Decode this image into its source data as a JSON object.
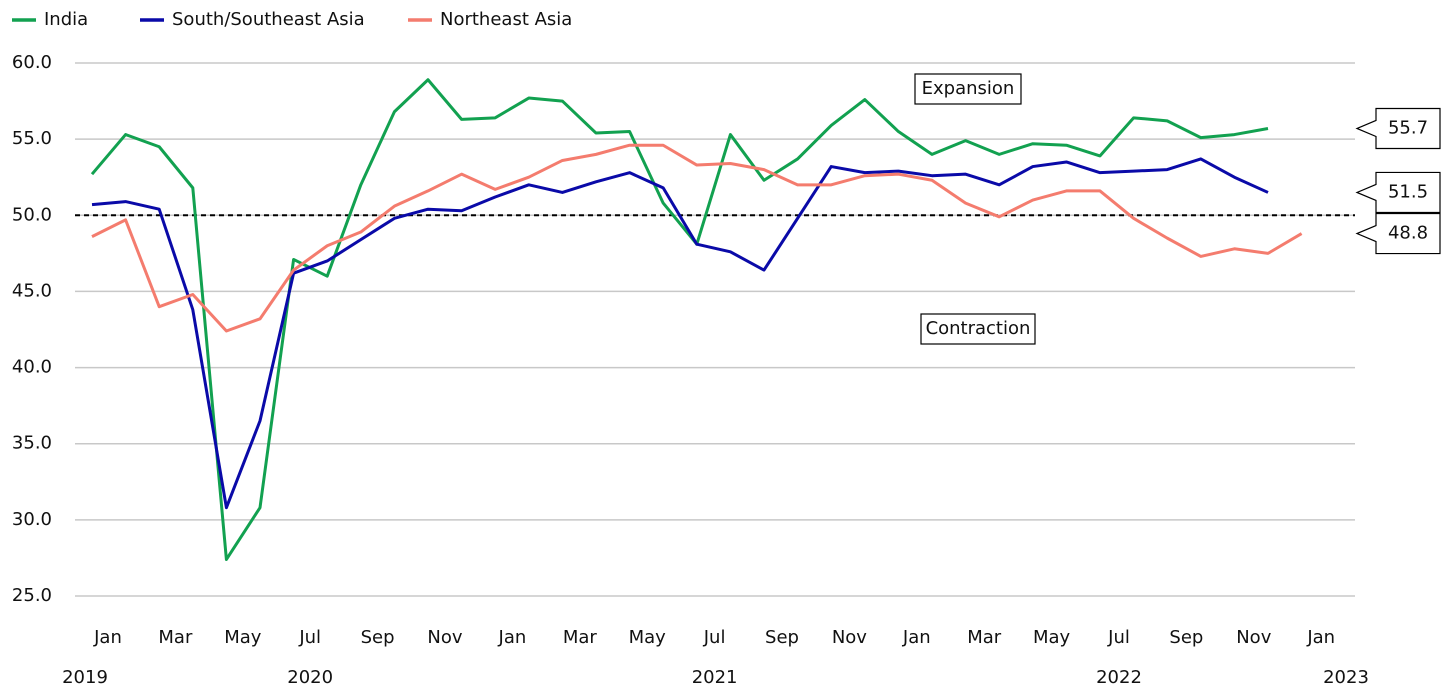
{
  "chart_data": {
    "type": "line",
    "x_labels": [
      "Jan",
      "Mar",
      "May",
      "Jul",
      "Sep",
      "Nov",
      "Jan",
      "Mar",
      "May",
      "Jul",
      "Sep",
      "Nov",
      "Jan",
      "Mar",
      "May",
      "Jul",
      "Sep",
      "Nov",
      "Jan"
    ],
    "year_labels": [
      "2019",
      "2020",
      "2021",
      "2022",
      "2023"
    ],
    "series": [
      {
        "name": "India",
        "color": "#12a150",
        "values": [
          52.7,
          55.3,
          54.5,
          51.8,
          27.4,
          30.8,
          47.1,
          46.0,
          52.0,
          56.8,
          58.9,
          56.3,
          56.4,
          57.7,
          57.5,
          55.4,
          55.5,
          50.8,
          48.1,
          55.3,
          52.3,
          53.7,
          55.9,
          57.6,
          55.5,
          54.0,
          54.9,
          54.0,
          54.7,
          54.6,
          53.9,
          56.4,
          56.2,
          55.1,
          55.3,
          55.7,
          null
        ]
      },
      {
        "name": "South/Southeast Asia",
        "color": "#0a0aa8",
        "values": [
          50.7,
          50.9,
          50.4,
          43.8,
          30.8,
          36.5,
          46.2,
          47.0,
          48.4,
          49.8,
          50.4,
          50.3,
          51.2,
          52.0,
          51.5,
          52.2,
          52.8,
          51.8,
          48.1,
          47.6,
          46.4,
          49.8,
          53.2,
          52.8,
          52.9,
          52.6,
          52.7,
          52.0,
          53.2,
          53.5,
          52.8,
          52.9,
          53.0,
          53.7,
          52.5,
          51.5,
          null
        ]
      },
      {
        "name": "Northeast Asia",
        "color": "#f47c6e",
        "values": [
          48.6,
          49.7,
          44.0,
          44.8,
          42.4,
          43.2,
          46.4,
          48.0,
          48.9,
          50.6,
          51.6,
          52.7,
          51.7,
          52.5,
          53.6,
          54.0,
          54.6,
          54.6,
          53.3,
          53.4,
          53.0,
          52.0,
          52.0,
          52.6,
          52.7,
          52.3,
          50.8,
          49.9,
          51.0,
          51.6,
          51.6,
          49.8,
          48.5,
          47.3,
          47.8,
          47.5,
          48.8
        ]
      }
    ],
    "ylim": [
      25,
      60
    ],
    "yticks": [
      {
        "value": 25,
        "label": "25.0"
      },
      {
        "value": 30,
        "label": "30.0"
      },
      {
        "value": 35,
        "label": "35.0"
      },
      {
        "value": 40,
        "label": "40.0"
      },
      {
        "value": 45,
        "label": "45.0"
      },
      {
        "value": 50,
        "label": "50.0"
      },
      {
        "value": 55,
        "label": "55.0"
      },
      {
        "value": 60,
        "label": "60.0"
      }
    ],
    "grid": true,
    "reference_line": 50,
    "annotations": [
      "Expansion",
      "Contraction"
    ]
  }
}
